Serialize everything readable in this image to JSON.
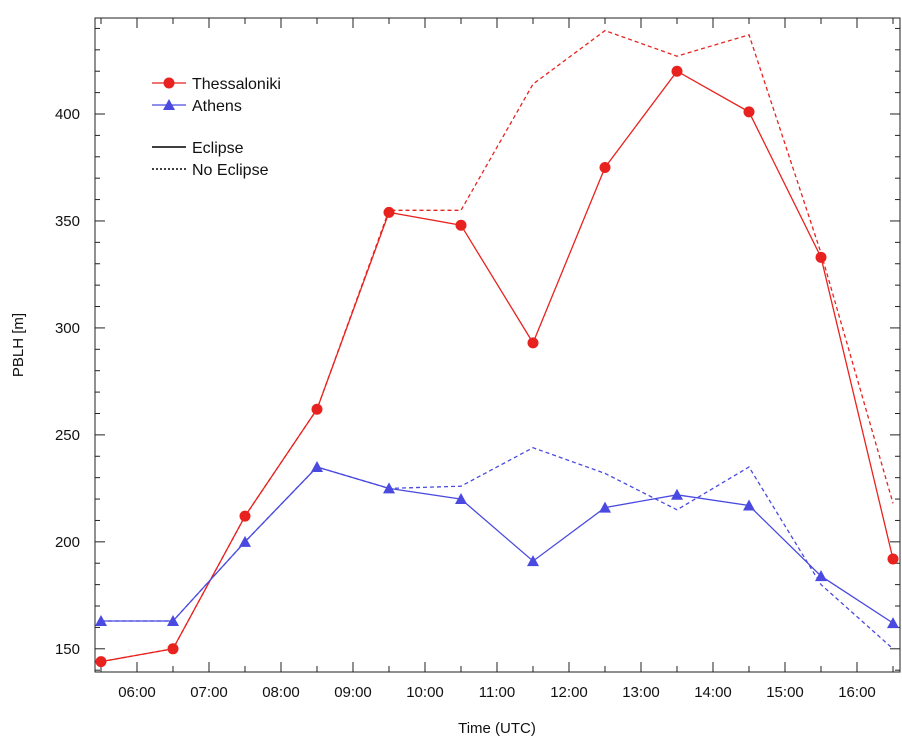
{
  "chart_data": {
    "type": "line",
    "title": "",
    "xlabel": "Time (UTC)",
    "ylabel": "PBLH [m]",
    "x_ticks": [
      "06:00",
      "07:00",
      "08:00",
      "09:00",
      "10:00",
      "11:00",
      "12:00",
      "13:00",
      "14:00",
      "15:00",
      "16:00"
    ],
    "x_ticks_hours": [
      6,
      7,
      8,
      9,
      10,
      11,
      12,
      13,
      14,
      15,
      16
    ],
    "y_ticks": [
      150,
      200,
      250,
      300,
      350,
      400
    ],
    "xlim": [
      5.5,
      16.5
    ],
    "ylim": [
      140,
      440
    ],
    "x_hours": [
      5.5,
      6.5,
      7.5,
      8.5,
      9.5,
      10.5,
      11.5,
      12.5,
      13.5,
      14.5,
      15.5,
      16.5
    ],
    "series": [
      {
        "name": "Thessaloniki",
        "scenario": "Eclipse",
        "color": "#e8231f",
        "marker": "circle",
        "values": [
          144,
          150,
          212,
          262,
          354,
          348,
          293,
          375,
          420,
          401,
          333,
          192
        ]
      },
      {
        "name": "Thessaloniki",
        "scenario": "No Eclipse",
        "color": "#e8231f",
        "marker": "none",
        "values": [
          144,
          150,
          212,
          262,
          355,
          355,
          414,
          439,
          427,
          437,
          335,
          218
        ]
      },
      {
        "name": "Athens",
        "scenario": "Eclipse",
        "color": "#4a4ae0",
        "marker": "triangle",
        "values": [
          163,
          163,
          200,
          235,
          225,
          220,
          191,
          216,
          222,
          217,
          184,
          162
        ]
      },
      {
        "name": "Athens",
        "scenario": "No Eclipse",
        "color": "#4a4ae0",
        "marker": "none",
        "values": [
          163,
          163,
          200,
          235,
          225,
          226,
          244,
          232,
          215,
          235,
          180,
          150
        ]
      }
    ],
    "legend": {
      "placement": "top-left",
      "markers": [
        {
          "label": "Thessaloniki",
          "color": "#e8231f",
          "marker": "circle"
        },
        {
          "label": "Athens",
          "color": "#4a4ae0",
          "marker": "triangle"
        }
      ],
      "line_styles": [
        {
          "label": "Eclipse",
          "style": "solid"
        },
        {
          "label": "No Eclipse",
          "style": "dotted"
        }
      ]
    }
  }
}
